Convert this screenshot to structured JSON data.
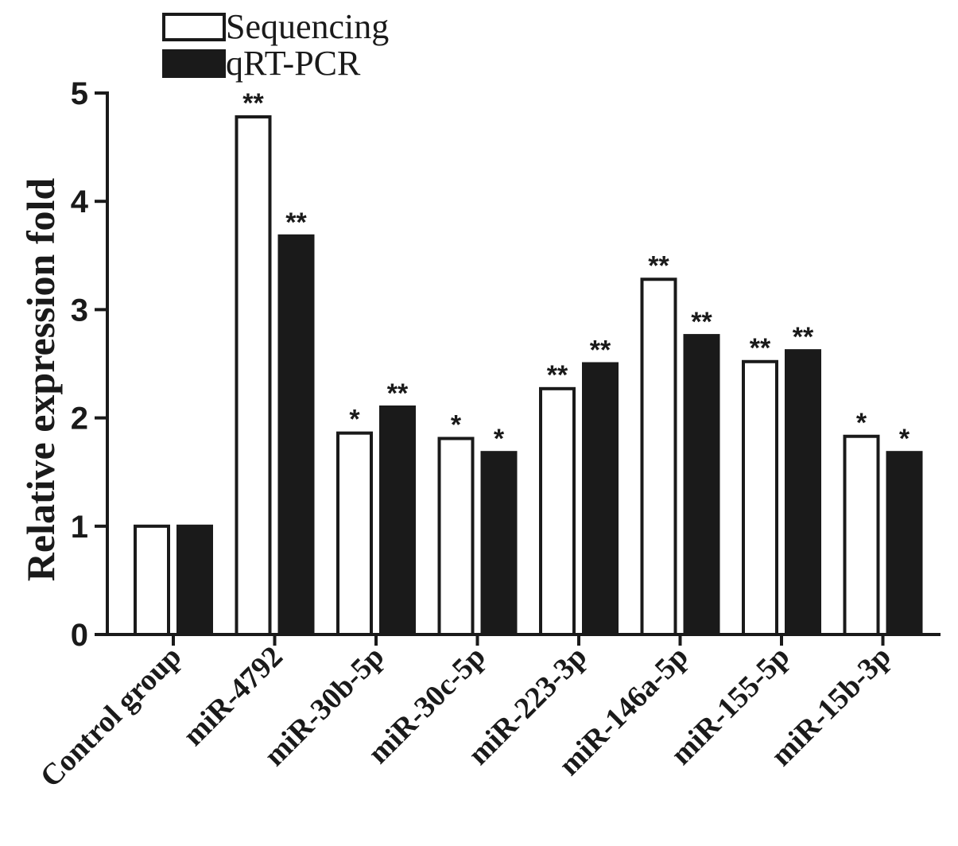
{
  "chart_data": {
    "type": "bar",
    "title": "",
    "xlabel": "",
    "ylabel": "Relative expression fold",
    "ylim": [
      0,
      5
    ],
    "yticks": [
      0,
      1,
      2,
      3,
      4,
      5
    ],
    "grid": false,
    "legend_position": "top-left",
    "categories": [
      "Control group",
      "miR-4792",
      "miR-30b-5p",
      "miR-30c-5p",
      "miR-223-3p",
      "miR-146a-5p",
      "miR-155-5p",
      "miR-15b-3p"
    ],
    "series": [
      {
        "name": "Sequencing",
        "fill": "#ffffff",
        "values": [
          1.0,
          4.78,
          1.86,
          1.81,
          2.27,
          3.28,
          2.52,
          1.83
        ],
        "significance": [
          "",
          "**",
          "*",
          "*",
          "**",
          "**",
          "**",
          "*"
        ]
      },
      {
        "name": "qRT-PCR",
        "fill": "#1a1a1a",
        "values": [
          1.0,
          3.68,
          2.1,
          1.68,
          2.5,
          2.76,
          2.62,
          1.68
        ],
        "significance": [
          "",
          "**",
          "**",
          "*",
          "**",
          "**",
          "**",
          "*"
        ]
      }
    ],
    "colors": {
      "axis": "#1a1a1a",
      "bar_outline": "#1a1a1a"
    }
  }
}
